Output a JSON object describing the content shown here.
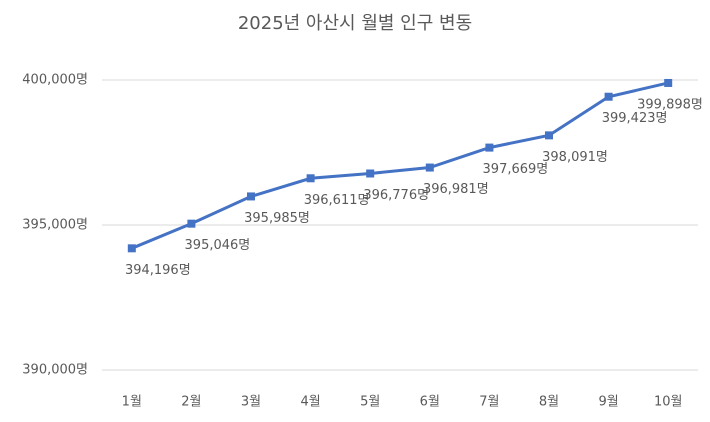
{
  "chart_data": {
    "type": "line",
    "title": "2025년 아산시 월별 인구 변동",
    "categories": [
      "1월",
      "2월",
      "3월",
      "4월",
      "5월",
      "6월",
      "7월",
      "8월",
      "9월",
      "10월"
    ],
    "series": [
      {
        "name": "인구",
        "color": "#4472c4",
        "values": [
          394196,
          395046,
          395985,
          396611,
          396776,
          396981,
          397669,
          398091,
          399423,
          399898
        ],
        "value_labels": [
          "394,196명",
          "395,046명",
          "395,985명",
          "396,611명",
          "396,776명",
          "396,981명",
          "397,669명",
          "398,091명",
          "399,423명",
          "399,898명"
        ]
      }
    ],
    "ylim": [
      390000,
      400000
    ],
    "yticks": [
      {
        "value": 390000,
        "label": "390,000명"
      },
      {
        "value": 395000,
        "label": "395,000명"
      },
      {
        "value": 400000,
        "label": "400,000명"
      }
    ],
    "grid": true
  }
}
